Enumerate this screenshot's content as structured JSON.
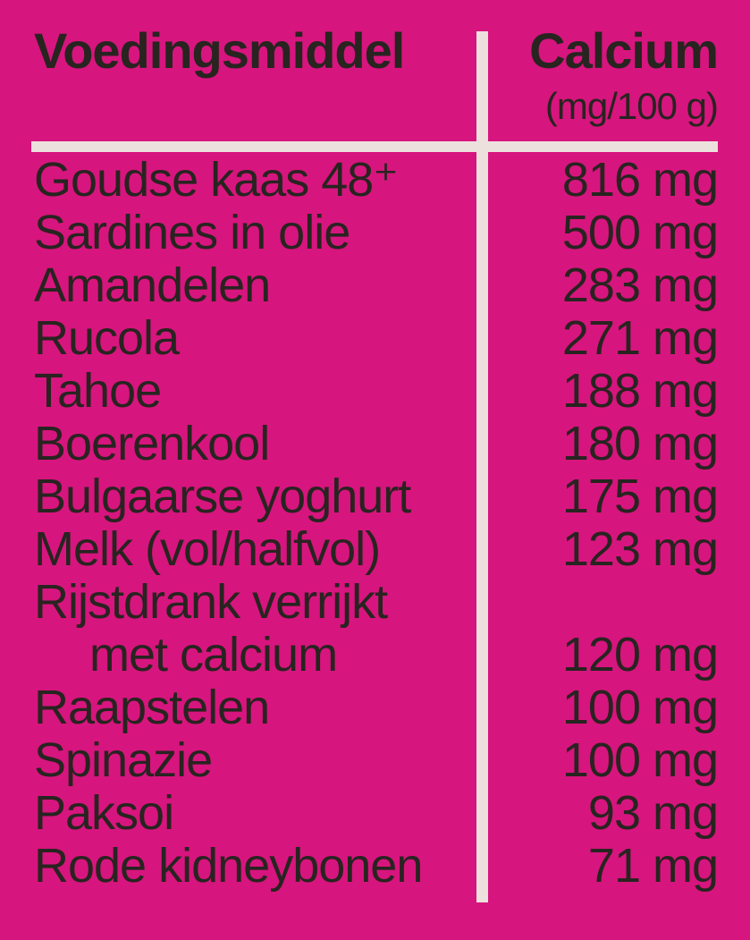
{
  "colors": {
    "background": "#d7157e",
    "divider": "#ede1de",
    "text": "#282420"
  },
  "table": {
    "header": {
      "food_column": "Voedingsmiddel",
      "value_column": "Calcium",
      "value_unit": "(mg/100 g)"
    },
    "rows": [
      {
        "food": "Goudse kaas 48⁺",
        "value": "816 mg",
        "indent": false
      },
      {
        "food": "Sardines in olie",
        "value": "500 mg",
        "indent": false
      },
      {
        "food": "Amandelen",
        "value": "283 mg",
        "indent": false
      },
      {
        "food": "Rucola",
        "value": "271 mg",
        "indent": false
      },
      {
        "food": "Tahoe",
        "value": "188 mg",
        "indent": false
      },
      {
        "food": "Boerenkool",
        "value": "180 mg",
        "indent": false
      },
      {
        "food": "Bulgaarse yoghurt",
        "value": "175 mg",
        "indent": false
      },
      {
        "food": "Melk (vol/halfvol)",
        "value": "123 mg",
        "indent": false
      },
      {
        "food": "Rijstdrank verrijkt",
        "value": "",
        "indent": false
      },
      {
        "food": "met calcium",
        "value": "120 mg",
        "indent": true
      },
      {
        "food": "Raapstelen",
        "value": "100 mg",
        "indent": false
      },
      {
        "food": "Spinazie",
        "value": "100 mg",
        "indent": false
      },
      {
        "food": "Paksoi",
        "value": "93 mg",
        "indent": false
      },
      {
        "food": "Rode kidneybonen",
        "value": "71 mg",
        "indent": false
      }
    ]
  },
  "chart_data": {
    "type": "table",
    "title": "Calcium (mg/100 g) per voedingsmiddel",
    "columns": [
      "Voedingsmiddel",
      "Calcium (mg/100 g)"
    ],
    "categories": [
      "Goudse kaas 48+",
      "Sardines in olie",
      "Amandelen",
      "Rucola",
      "Tahoe",
      "Boerenkool",
      "Bulgaarse yoghurt",
      "Melk (vol/halfvol)",
      "Rijstdrank verrijkt met calcium",
      "Raapstelen",
      "Spinazie",
      "Paksoi",
      "Rode kidneybonen"
    ],
    "values": [
      816,
      500,
      283,
      271,
      188,
      180,
      175,
      123,
      120,
      100,
      100,
      93,
      71
    ],
    "unit": "mg/100 g"
  }
}
